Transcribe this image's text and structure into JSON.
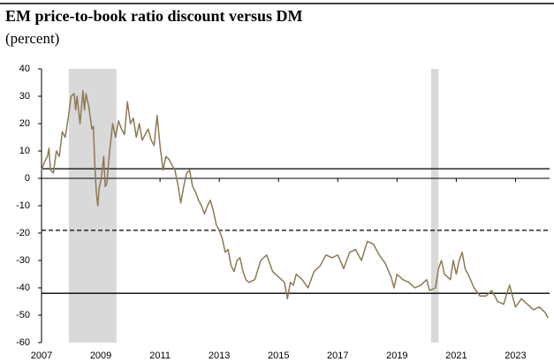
{
  "chart_data": {
    "type": "line",
    "title": "EM price-to-book ratio discount versus DM",
    "subtitle": "(percent)",
    "x": [
      2007.0,
      2007.1,
      2007.2,
      2007.25,
      2007.3,
      2007.4,
      2007.5,
      2007.6,
      2007.7,
      2007.8,
      2007.9,
      2008.0,
      2008.1,
      2008.15,
      2008.2,
      2008.3,
      2008.4,
      2008.45,
      2008.5,
      2008.6,
      2008.7,
      2008.75,
      2008.8,
      2008.85,
      2008.9,
      2008.95,
      2009.0,
      2009.05,
      2009.1,
      2009.15,
      2009.2,
      2009.3,
      2009.4,
      2009.5,
      2009.6,
      2009.7,
      2009.8,
      2009.9,
      2010.0,
      2010.1,
      2010.2,
      2010.3,
      2010.4,
      2010.5,
      2010.6,
      2010.7,
      2010.8,
      2010.9,
      2011.0,
      2011.1,
      2011.2,
      2011.3,
      2011.4,
      2011.5,
      2011.6,
      2011.7,
      2011.8,
      2011.9,
      2012.0,
      2012.1,
      2012.2,
      2012.3,
      2012.4,
      2012.5,
      2012.6,
      2012.7,
      2012.8,
      2012.9,
      2013.0,
      2013.1,
      2013.2,
      2013.3,
      2013.4,
      2013.5,
      2013.6,
      2013.7,
      2013.8,
      2013.9,
      2014.0,
      2014.2,
      2014.4,
      2014.6,
      2014.8,
      2015.0,
      2015.2,
      2015.3,
      2015.4,
      2015.5,
      2015.6,
      2015.8,
      2016.0,
      2016.2,
      2016.4,
      2016.6,
      2016.8,
      2017.0,
      2017.2,
      2017.4,
      2017.6,
      2017.8,
      2018.0,
      2018.2,
      2018.4,
      2018.6,
      2018.8,
      2018.9,
      2019.0,
      2019.2,
      2019.4,
      2019.6,
      2019.8,
      2020.0,
      2020.1,
      2020.3,
      2020.4,
      2020.5,
      2020.6,
      2020.8,
      2020.9,
      2021.0,
      2021.1,
      2021.2,
      2021.3,
      2021.4,
      2021.6,
      2021.8,
      2022.0,
      2022.2,
      2022.4,
      2022.6,
      2022.8,
      2023.0,
      2023.2,
      2023.4,
      2023.6,
      2023.8,
      2024.0,
      2024.1
    ],
    "values": [
      3,
      6,
      8,
      11,
      3,
      2,
      10,
      8,
      17,
      15,
      22,
      30,
      31,
      25,
      30,
      20,
      32,
      25,
      31,
      26,
      18,
      19,
      5,
      -5,
      -10,
      -3,
      -1,
      3,
      8,
      -3,
      -2,
      10,
      20,
      15,
      21,
      18,
      16,
      28,
      20,
      22,
      15,
      20,
      14,
      16,
      18,
      14,
      12,
      23,
      12,
      3,
      8,
      7,
      5,
      3,
      -2,
      -9,
      -3,
      2,
      3,
      -3,
      -5,
      -8,
      -10,
      -13,
      -10,
      -8,
      -12,
      -17,
      -19,
      -22,
      -27,
      -26,
      -32,
      -34,
      -30,
      -29,
      -34,
      -37,
      -38,
      -37,
      -30,
      -28,
      -34,
      -36,
      -38,
      -44,
      -38,
      -39,
      -35,
      -37,
      -40,
      -34,
      -32,
      -28,
      -29,
      -28,
      -33,
      -27,
      -26,
      -30,
      -23,
      -24,
      -28,
      -31,
      -36,
      -40,
      -35,
      -37,
      -38,
      -40,
      -39,
      -37,
      -41,
      -40,
      -33,
      -30,
      -35,
      -37,
      -30,
      -35,
      -30,
      -27,
      -33,
      -35,
      -40,
      -43,
      -43,
      -41,
      -45,
      -46,
      -39,
      -47,
      -44,
      -46,
      -48,
      -47,
      -49,
      -51
    ],
    "color": "#8c7a54",
    "shaded_regions": [
      [
        2007.92,
        2009.53
      ],
      [
        2020.15,
        2020.4
      ]
    ],
    "shade_color": "#d9d9d9",
    "hlines": [
      {
        "value": 3.5,
        "style": "solid"
      },
      {
        "value": -19,
        "style": "dashed"
      },
      {
        "value": -42,
        "style": "solid"
      }
    ],
    "xlim": [
      2007,
      2024.15
    ],
    "xticks": [
      2007,
      2009,
      2011,
      2013,
      2015,
      2017,
      2019,
      2021,
      2023
    ],
    "ylim": [
      -60,
      40
    ],
    "yticks": [
      -60,
      -50,
      -40,
      -30,
      -20,
      -10,
      0,
      10,
      20,
      30,
      40
    ]
  }
}
